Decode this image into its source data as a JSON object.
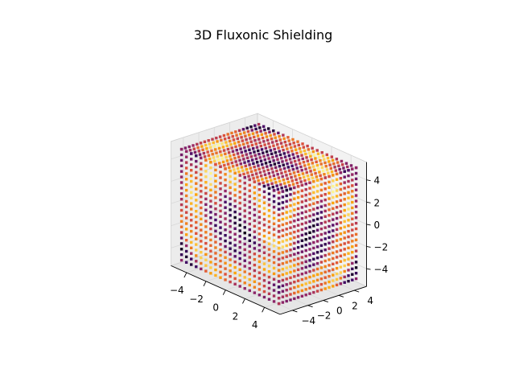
{
  "chart_data": {
    "type": "scatter",
    "projection": "3d",
    "title": "3D Fluxonic Shielding",
    "xlabel": "",
    "ylabel": "",
    "zlabel": "",
    "xlim": [
      -5,
      5
    ],
    "ylim": [
      -5,
      5
    ],
    "zlim": [
      -5,
      5
    ],
    "xticks": [
      "−4",
      "−2",
      "0",
      "2",
      "4"
    ],
    "yticks": [
      "−4",
      "−2",
      "0",
      "2",
      "4"
    ],
    "zticks": [
      "−4",
      "−2",
      "0",
      "2",
      "4"
    ],
    "grid": true,
    "colormap": "inferno",
    "colormap_stops": [
      "#000004",
      "#420a68",
      "#932667",
      "#dd513a",
      "#fca50a",
      "#fcffa4"
    ],
    "point_grid": {
      "x_range": [
        -5,
        5
      ],
      "y_range": [
        -5,
        5
      ],
      "z_range": [
        -5,
        5
      ]
    }
  }
}
